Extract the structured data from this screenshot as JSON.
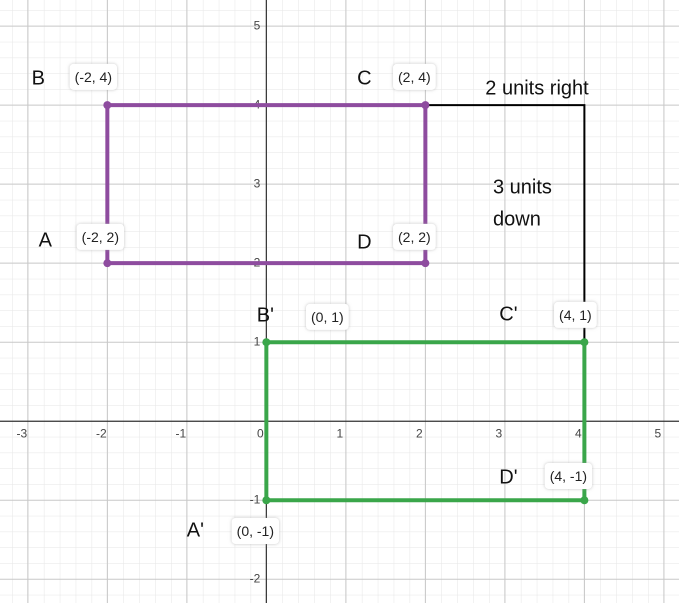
{
  "chart_data": {
    "type": "polygon",
    "xlim": [
      -3.35,
      5.19
    ],
    "ylim": [
      -2.3,
      5.33
    ],
    "xticks": [
      -3,
      -2,
      -1,
      0,
      1,
      2,
      3,
      4,
      5
    ],
    "yticks": [
      -2,
      -1,
      1,
      2,
      3,
      4,
      5
    ],
    "grid": true,
    "series": [
      {
        "color": "#8e4c9f",
        "point_labels": [
          "A",
          "B",
          "C",
          "D"
        ],
        "x": [
          -2,
          -2,
          2,
          2
        ],
        "y": [
          2,
          4,
          4,
          2
        ],
        "value_labels": [
          "(-2, 2)",
          "(-2, 4)",
          "(2, 4)",
          "(2, 2)"
        ]
      },
      {
        "color": "#3aa64a",
        "point_labels": [
          "A'",
          "B'",
          "C'",
          "D'"
        ],
        "x": [
          0,
          0,
          4,
          4
        ],
        "y": [
          -1,
          1,
          1,
          -1
        ],
        "value_labels": [
          "(0, -1)",
          "(0, 1)",
          "(4, 1)",
          "(4, -1)"
        ]
      }
    ],
    "path": {
      "color": "#000000",
      "x": [
        2,
        4,
        4
      ],
      "y": [
        4,
        4,
        1
      ]
    },
    "annotations": [
      "2 units right",
      "3 units",
      "down"
    ]
  }
}
